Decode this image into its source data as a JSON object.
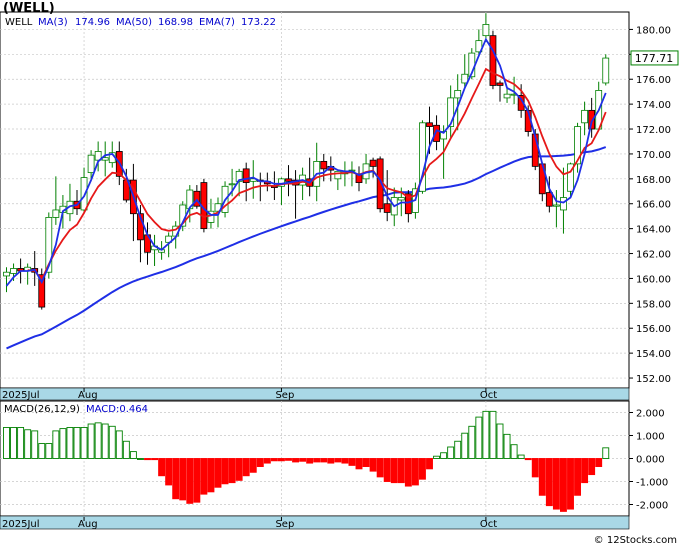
{
  "chart_data": [
    {
      "type": "candlestick",
      "ticker": "(WELL)",
      "legend": [
        {
          "label": "WELL",
          "color": "#000000"
        },
        {
          "label": "MA(3)",
          "value": "174.96",
          "color": "#0000cc"
        },
        {
          "label": "MA(50)",
          "value": "168.98",
          "color": "#0000cc"
        },
        {
          "label": "EMA(7)",
          "value": "173.22",
          "color": "#0000cc"
        }
      ],
      "last_price": "177.71",
      "ylim": [
        151.2,
        181.4
      ],
      "y_ticks": [
        "152.00",
        "154.00",
        "156.00",
        "158.00",
        "160.00",
        "162.00",
        "164.00",
        "166.00",
        "168.00",
        "170.00",
        "172.00",
        "174.00",
        "176.00",
        "178.00",
        "180.00"
      ],
      "x_labels": [
        {
          "label": "2025Jul",
          "index": 0
        },
        {
          "label": "Aug",
          "index": 11
        },
        {
          "label": "Sep",
          "index": 39
        },
        {
          "label": "Oct",
          "index": 68
        }
      ],
      "ohlc": [
        [
          160.2,
          160.9,
          158.9,
          160.5
        ],
        [
          160.4,
          161.2,
          159.8,
          160.8
        ],
        [
          160.8,
          161.6,
          159.6,
          160.6
        ],
        [
          160.6,
          161.2,
          159.5,
          160.9
        ],
        [
          160.8,
          162.2,
          159.4,
          160.5
        ],
        [
          160.3,
          160.8,
          157.5,
          157.7
        ],
        [
          160.5,
          165.3,
          160.0,
          164.9
        ],
        [
          164.9,
          168.2,
          164.3,
          165.5
        ],
        [
          165.3,
          166.7,
          164.0,
          165.8
        ],
        [
          165.2,
          167.6,
          164.6,
          166.2
        ],
        [
          166.2,
          167.1,
          165.1,
          165.6
        ],
        [
          165.5,
          168.9,
          165.3,
          168.1
        ],
        [
          168.5,
          170.3,
          167.8,
          169.9
        ],
        [
          169.5,
          171.0,
          168.6,
          170.2
        ],
        [
          169.5,
          171.0,
          168.2,
          169.7
        ],
        [
          169.3,
          171.0,
          168.9,
          170.1
        ],
        [
          170.2,
          171.0,
          167.5,
          168.2
        ],
        [
          167.9,
          168.8,
          166.1,
          166.3
        ],
        [
          167.9,
          169.2,
          163.0,
          165.2
        ],
        [
          165.2,
          165.9,
          161.3,
          163.1
        ],
        [
          163.5,
          164.5,
          161.1,
          162.1
        ],
        [
          162.3,
          163.5,
          161.0,
          162.6
        ],
        [
          162.1,
          163.0,
          161.5,
          162.3
        ],
        [
          162.9,
          163.7,
          161.7,
          163.4
        ],
        [
          163.4,
          164.6,
          162.4,
          164.2
        ],
        [
          164.2,
          166.2,
          163.8,
          165.9
        ],
        [
          165.6,
          167.5,
          164.5,
          167.1
        ],
        [
          167.0,
          167.5,
          165.6,
          165.8
        ],
        [
          167.7,
          168.0,
          163.7,
          164.0
        ],
        [
          164.5,
          166.4,
          164.0,
          165.4
        ],
        [
          165.4,
          166.5,
          164.1,
          166.0
        ],
        [
          165.3,
          167.8,
          164.9,
          167.4
        ],
        [
          167.6,
          168.8,
          166.6,
          167.6
        ],
        [
          167.8,
          168.8,
          166.6,
          168.6
        ],
        [
          168.8,
          169.3,
          166.2,
          167.7
        ],
        [
          167.8,
          169.5,
          166.4,
          168.0
        ],
        [
          167.9,
          168.5,
          166.2,
          167.8
        ],
        [
          167.8,
          168.5,
          167.0,
          167.6
        ],
        [
          167.4,
          168.6,
          166.3,
          167.3
        ],
        [
          167.4,
          168.1,
          165.9,
          168.0
        ],
        [
          168.0,
          169.1,
          166.6,
          167.8
        ],
        [
          167.9,
          168.7,
          164.8,
          167.5
        ],
        [
          167.5,
          168.9,
          166.3,
          168.3
        ],
        [
          168.0,
          169.7,
          166.6,
          167.4
        ],
        [
          167.4,
          170.9,
          166.2,
          169.4
        ],
        [
          169.4,
          170.0,
          167.8,
          168.8
        ],
        [
          169.0,
          169.8,
          167.8,
          168.7
        ],
        [
          168.0,
          168.5,
          167.1,
          168.6
        ],
        [
          168.4,
          169.4,
          167.4,
          168.6
        ],
        [
          168.7,
          169.4,
          167.4,
          168.7
        ],
        [
          168.4,
          169.0,
          167.0,
          167.7
        ],
        [
          168.0,
          170.0,
          167.6,
          169.2
        ],
        [
          169.5,
          169.7,
          168.1,
          169.0
        ],
        [
          169.6,
          169.8,
          165.3,
          165.6
        ],
        [
          166.0,
          168.7,
          164.6,
          165.3
        ],
        [
          165.1,
          167.3,
          164.2,
          166.5
        ],
        [
          166.3,
          167.3,
          165.0,
          166.5
        ],
        [
          166.8,
          167.1,
          164.5,
          165.2
        ],
        [
          165.3,
          167.7,
          164.8,
          167.2
        ],
        [
          167.0,
          172.7,
          166.8,
          172.5
        ],
        [
          172.5,
          173.8,
          170.0,
          172.2
        ],
        [
          172.3,
          173.1,
          170.3,
          171.0
        ],
        [
          171.2,
          172.3,
          168.0,
          171.8
        ],
        [
          172.2,
          175.5,
          171.2,
          174.5
        ],
        [
          174.5,
          176.4,
          171.9,
          175.1
        ],
        [
          175.7,
          178.0,
          175.2,
          176.4
        ],
        [
          176.2,
          178.5,
          176.0,
          178.1
        ],
        [
          178.2,
          180.0,
          177.8,
          179.1
        ],
        [
          179.5,
          181.3,
          179.0,
          180.4
        ],
        [
          179.5,
          179.9,
          175.2,
          175.5
        ],
        [
          175.7,
          175.9,
          174.2,
          175.5
        ],
        [
          174.5,
          175.3,
          174.1,
          174.8
        ],
        [
          174.8,
          176.2,
          174.0,
          174.8
        ],
        [
          174.7,
          175.6,
          172.9,
          173.5
        ],
        [
          173.5,
          173.9,
          171.4,
          171.8
        ],
        [
          171.6,
          172.0,
          168.7,
          169.0
        ],
        [
          169.2,
          169.3,
          166.2,
          166.8
        ],
        [
          166.9,
          168.2,
          165.3,
          165.8
        ],
        [
          165.8,
          167.1,
          164.1,
          165.9
        ],
        [
          165.5,
          168.9,
          163.6,
          166.5
        ],
        [
          167.0,
          169.3,
          166.5,
          169.2
        ],
        [
          169.2,
          172.5,
          168.5,
          172.2
        ],
        [
          172.5,
          174.2,
          171.5,
          173.5
        ],
        [
          173.5,
          174.5,
          171.3,
          172.0
        ],
        [
          172.0,
          175.8,
          172.0,
          175.1
        ],
        [
          175.7,
          178.0,
          175.5,
          177.7
        ]
      ],
      "ma3": [
        159.4,
        160.1,
        160.6,
        160.6,
        160.7,
        159.7,
        161.0,
        162.7,
        165.4,
        165.8,
        165.9,
        166.6,
        167.9,
        169.4,
        169.9,
        170.0,
        169.3,
        168.2,
        166.6,
        164.9,
        163.5,
        162.6,
        162.3,
        162.8,
        163.3,
        164.5,
        165.7,
        166.3,
        165.6,
        165.1,
        165.1,
        166.3,
        167.0,
        167.9,
        168.0,
        168.1,
        167.8,
        167.8,
        167.6,
        167.6,
        167.7,
        167.8,
        167.9,
        167.7,
        168.4,
        168.5,
        169.0,
        168.7,
        168.6,
        168.6,
        168.3,
        168.5,
        168.6,
        167.9,
        166.6,
        165.8,
        166.1,
        166.1,
        166.3,
        168.3,
        170.6,
        171.9,
        171.7,
        172.4,
        173.8,
        175.3,
        176.5,
        177.9,
        179.2,
        178.3,
        177.1,
        175.3,
        175.0,
        174.4,
        173.4,
        171.4,
        169.2,
        167.2,
        166.2,
        166.1,
        166.5,
        167.9,
        170.0,
        172.6,
        173.5,
        174.9
      ]
    },
    {
      "type": "bar",
      "title": "MACD(26,12,9)",
      "value_label": "MACD:0.464",
      "ylim": [
        -2.5,
        2.5
      ],
      "y_ticks": [
        "2.000",
        "1.000",
        "0.000",
        "-1.000",
        "-2.000"
      ],
      "x_labels": [
        {
          "label": "2025Jul",
          "index": 0
        },
        {
          "label": "Aug",
          "index": 11
        },
        {
          "label": "Sep",
          "index": 39
        },
        {
          "label": "Oct",
          "index": 68
        }
      ],
      "values": [
        1.35,
        1.35,
        1.35,
        1.25,
        1.2,
        0.65,
        0.65,
        1.2,
        1.3,
        1.35,
        1.35,
        1.35,
        1.5,
        1.55,
        1.5,
        1.4,
        1.2,
        0.75,
        0.3,
        0,
        -0.05,
        -0.05,
        -0.75,
        -1.15,
        -1.75,
        -1.8,
        -1.95,
        -1.9,
        -1.55,
        -1.45,
        -1.25,
        -1.1,
        -1.05,
        -0.95,
        -0.75,
        -0.6,
        -0.35,
        -0.2,
        -0.1,
        -0.1,
        -0.08,
        -0.15,
        -0.12,
        -0.2,
        -0.15,
        -0.15,
        -0.2,
        -0.15,
        -0.2,
        -0.3,
        -0.45,
        -0.35,
        -0.55,
        -0.8,
        -1.0,
        -1.05,
        -1.05,
        -1.2,
        -1.15,
        -0.9,
        -0.45,
        0.1,
        0.25,
        0.5,
        0.75,
        1.1,
        1.4,
        1.8,
        2.05,
        2.05,
        1.5,
        1.05,
        0.6,
        0.15,
        -0.05,
        -0.8,
        -1.6,
        -2.05,
        -2.2,
        -2.3,
        -2.2,
        -1.6,
        -1.05,
        -0.7,
        -0.35,
        0.464
      ]
    }
  ],
  "footer": {
    "credit": "© 12Stocks.com"
  },
  "colors": {
    "up": "#008000",
    "down": "#ff0000",
    "ma_line": "#1f2fe6",
    "ema_line": "#e61919",
    "axis_band": "#a9d8e6"
  }
}
